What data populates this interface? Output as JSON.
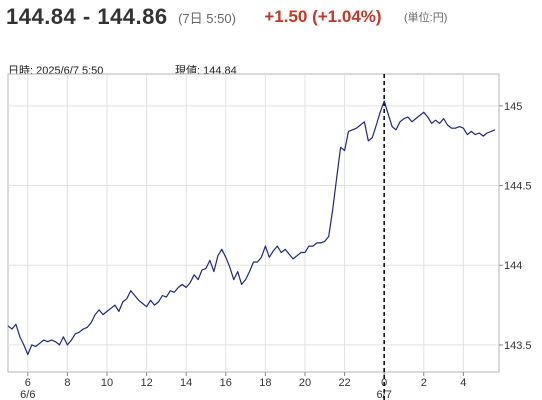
{
  "header": {
    "price_range": "144.84 - 144.86",
    "time": "(7日 5:50)",
    "change": "+1.50 (+1.04%)",
    "unit": "(単位:円)"
  },
  "info": {
    "datetime_label": "日時:",
    "datetime_value": "2025/6/7 5:50",
    "current_label": "現値:",
    "current_value": "144.84"
  },
  "chart_data": {
    "type": "line",
    "title": "",
    "xlabel": "",
    "ylabel": "",
    "y_ticks": [
      143.5,
      144,
      144.5,
      145
    ],
    "ylim": [
      143.33,
      145.2
    ],
    "x_unit": "hours since 6/6 5:00",
    "xlim": [
      0,
      24.8
    ],
    "x_ticks": [
      {
        "label": "6",
        "x": 1
      },
      {
        "label": "8",
        "x": 3
      },
      {
        "label": "10",
        "x": 5
      },
      {
        "label": "12",
        "x": 7
      },
      {
        "label": "14",
        "x": 9
      },
      {
        "label": "16",
        "x": 11
      },
      {
        "label": "18",
        "x": 13
      },
      {
        "label": "20",
        "x": 15
      },
      {
        "label": "22",
        "x": 17
      },
      {
        "label": "0",
        "x": 19
      },
      {
        "label": "2",
        "x": 21
      },
      {
        "label": "4",
        "x": 23
      }
    ],
    "date_labels": [
      {
        "label": "6/6",
        "x": 1
      },
      {
        "label": "6/7",
        "x": 19
      }
    ],
    "day_divider_x": 19,
    "grid": true,
    "line_color": "#1f2a7a",
    "series": [
      {
        "name": "",
        "x": [
          0,
          0.2,
          0.4,
          0.6,
          0.8,
          1.0,
          1.2,
          1.4,
          1.6,
          1.8,
          2.0,
          2.2,
          2.4,
          2.6,
          2.8,
          3.0,
          3.2,
          3.4,
          3.6,
          3.8,
          4.0,
          4.2,
          4.4,
          4.6,
          4.8,
          5.0,
          5.2,
          5.4,
          5.6,
          5.8,
          6.0,
          6.2,
          6.4,
          6.6,
          6.8,
          7.0,
          7.2,
          7.4,
          7.6,
          7.8,
          8.0,
          8.2,
          8.4,
          8.6,
          8.8,
          9.0,
          9.2,
          9.4,
          9.6,
          9.8,
          10.0,
          10.2,
          10.4,
          10.6,
          10.8,
          11.0,
          11.2,
          11.4,
          11.6,
          11.8,
          12.0,
          12.2,
          12.4,
          12.6,
          12.8,
          13.0,
          13.2,
          13.4,
          13.6,
          13.8,
          14.0,
          14.2,
          14.4,
          14.6,
          14.8,
          15.0,
          15.2,
          15.4,
          15.6,
          15.8,
          16.0,
          16.2,
          16.4,
          16.6,
          16.8,
          17.0,
          17.2,
          17.4,
          17.6,
          17.8,
          18.0,
          18.2,
          18.4,
          18.6,
          18.8,
          19.0,
          19.2,
          19.4,
          19.6,
          19.8,
          20.0,
          20.2,
          20.4,
          20.6,
          20.8,
          21.0,
          21.2,
          21.4,
          21.6,
          21.8,
          22.0,
          22.2,
          22.4,
          22.6,
          22.8,
          23.0,
          23.2,
          23.4,
          23.6,
          23.8,
          24.0,
          24.2,
          24.4,
          24.6
        ],
        "values": [
          143.62,
          143.6,
          143.63,
          143.55,
          143.5,
          143.44,
          143.5,
          143.49,
          143.51,
          143.53,
          143.52,
          143.53,
          143.52,
          143.5,
          143.55,
          143.5,
          143.53,
          143.57,
          143.58,
          143.6,
          143.61,
          143.64,
          143.69,
          143.72,
          143.69,
          143.71,
          143.73,
          143.75,
          143.71,
          143.77,
          143.79,
          143.84,
          143.81,
          143.78,
          143.76,
          143.74,
          143.78,
          143.75,
          143.77,
          143.81,
          143.8,
          143.84,
          143.83,
          143.86,
          143.88,
          143.86,
          143.89,
          143.94,
          143.91,
          143.97,
          143.98,
          144.03,
          143.96,
          144.06,
          144.1,
          144.05,
          143.99,
          143.91,
          143.96,
          143.88,
          143.91,
          143.96,
          144.02,
          144.02,
          144.05,
          144.12,
          144.05,
          144.09,
          144.12,
          144.08,
          144.1,
          144.07,
          144.04,
          144.06,
          144.08,
          144.08,
          144.12,
          144.12,
          144.14,
          144.14,
          144.15,
          144.18,
          144.35,
          144.55,
          144.74,
          144.72,
          144.84,
          144.85,
          144.86,
          144.88,
          144.9,
          144.78,
          144.8,
          144.88,
          144.96,
          145.03,
          144.95,
          144.87,
          144.85,
          144.9,
          144.92,
          144.93,
          144.9,
          144.92,
          144.94,
          144.96,
          144.93,
          144.89,
          144.91,
          144.89,
          144.92,
          144.88,
          144.86,
          144.86,
          144.87,
          144.86,
          144.82,
          144.84,
          144.82,
          144.83,
          144.81,
          144.83,
          144.84,
          144.85
        ]
      }
    ]
  }
}
